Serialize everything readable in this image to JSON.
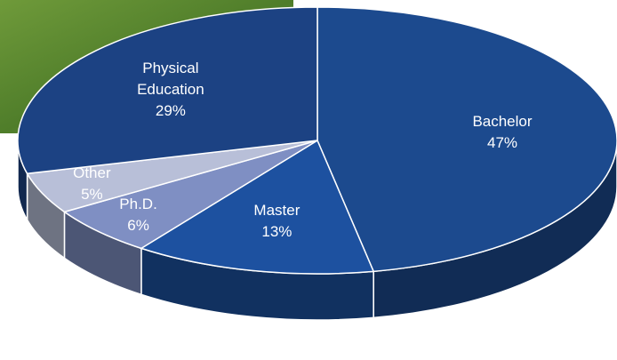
{
  "chart_data": {
    "type": "pie",
    "categories": [
      "Bachelor",
      "Master",
      "Ph.D.",
      "Other",
      "Physical Education"
    ],
    "values": [
      47,
      13,
      6,
      5,
      29
    ],
    "value_labels": [
      "47%",
      "13%",
      "6%",
      "5%",
      "29%"
    ],
    "colors": [
      "#1c4a8e",
      "#1d51a0",
      "#7f8fc3",
      "#b8bfd8",
      "#1c4283"
    ]
  }
}
